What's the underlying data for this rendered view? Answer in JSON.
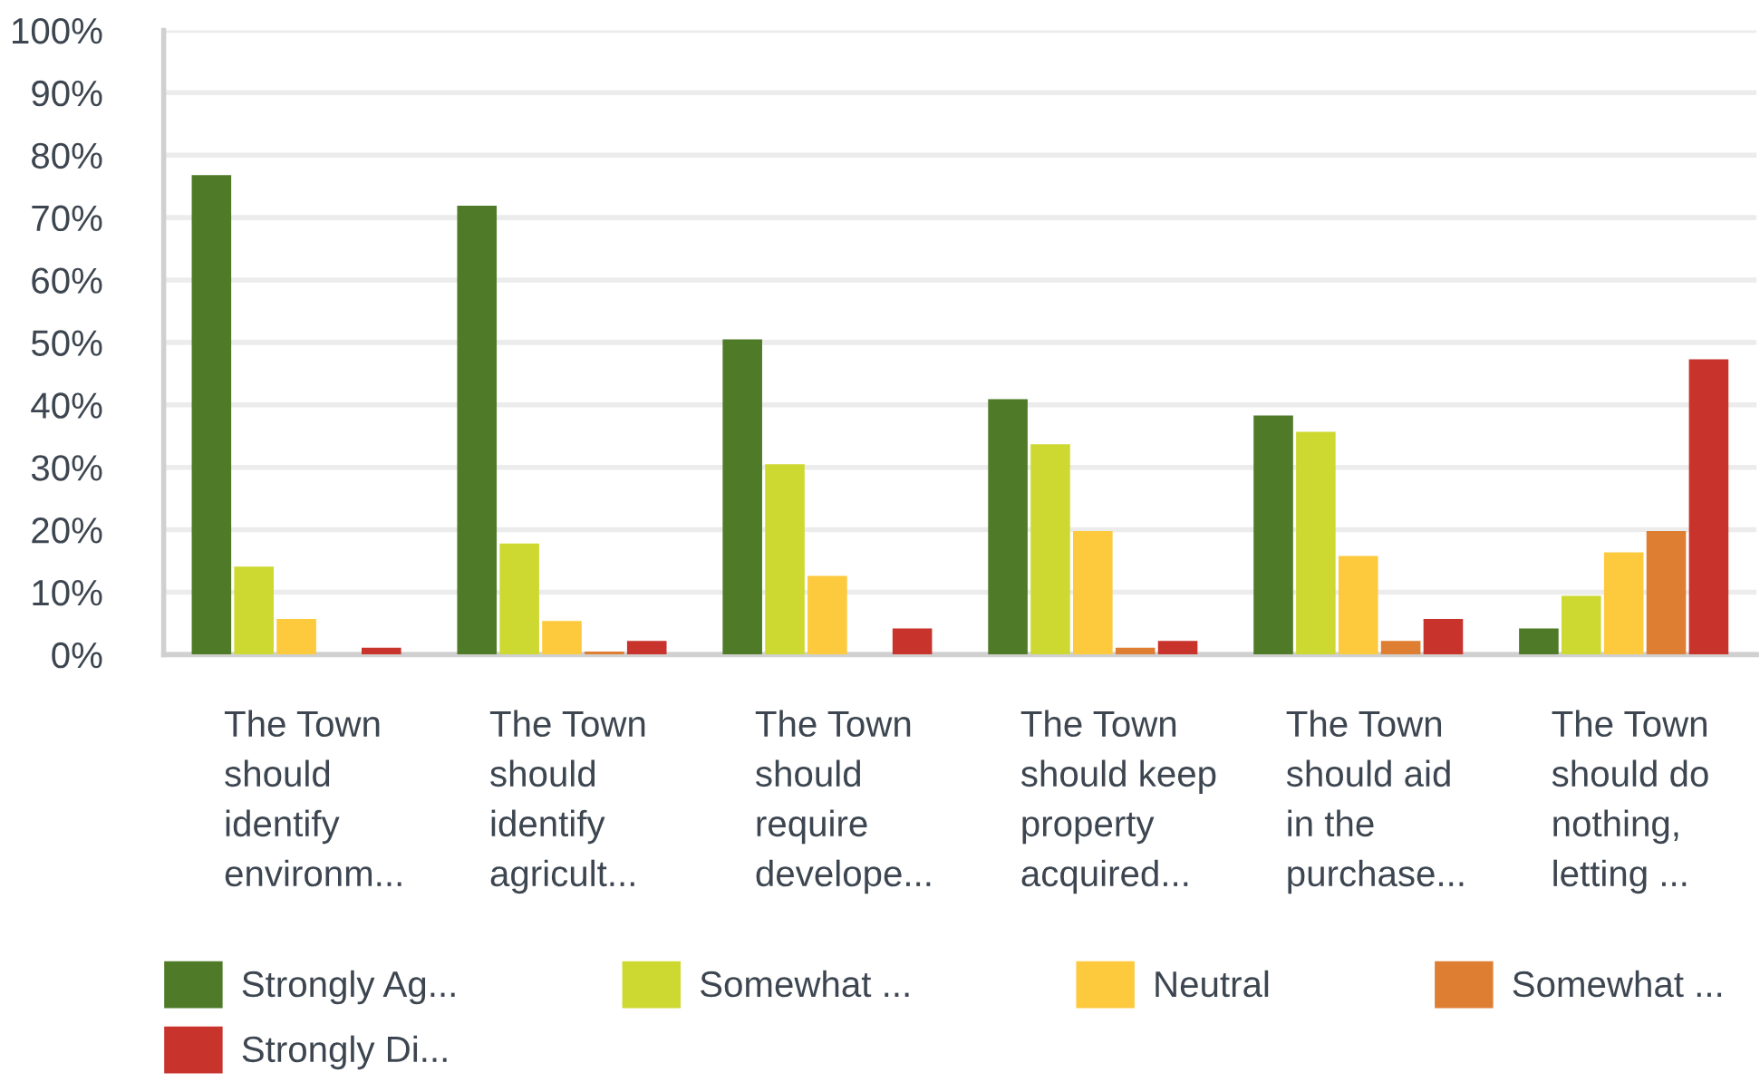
{
  "chart_data": {
    "type": "bar",
    "categories": [
      "The Town\nshould\nidentify\nenvironm...",
      "The Town\nshould\nidentify\nagricult...",
      "The Town\nshould\nrequire\ndevelope...",
      "The Town\nshould keep\nproperty\nacquired...",
      "The Town\nshould aid\nin the\npurchase...",
      "The Town\nshould do\nnothing,\nletting ..."
    ],
    "series": [
      {
        "name": "Strongly Ag...",
        "color": "#4f7a28",
        "values": [
          76.8,
          71.9,
          50.5,
          40.9,
          38.3,
          4.2
        ]
      },
      {
        "name": "Somewhat ...",
        "color": "#cdd931",
        "values": [
          14.1,
          17.8,
          30.5,
          33.7,
          35.7,
          9.4
        ]
      },
      {
        "name": "Neutral",
        "color": "#fdc93d",
        "values": [
          5.7,
          5.4,
          12.6,
          19.8,
          15.8,
          16.4
        ]
      },
      {
        "name": "Somewhat ...",
        "color": "#de7e33",
        "values": [
          0,
          0.5,
          0,
          1.1,
          2.2,
          19.8
        ]
      },
      {
        "name": "Strongly Di...",
        "color": "#c8332c",
        "values": [
          1.1,
          2.2,
          4.2,
          2.2,
          5.7,
          47.3
        ]
      }
    ],
    "ylim": [
      0,
      100
    ],
    "yticks": [
      {
        "value": 0,
        "label": "0%"
      },
      {
        "value": 10,
        "label": "10%"
      },
      {
        "value": 20,
        "label": "20%"
      },
      {
        "value": 30,
        "label": "30%"
      },
      {
        "value": 40,
        "label": "40%"
      },
      {
        "value": 50,
        "label": "50%"
      },
      {
        "value": 60,
        "label": "60%"
      },
      {
        "value": 70,
        "label": "70%"
      },
      {
        "value": 80,
        "label": "80%"
      },
      {
        "value": 90,
        "label": "90%"
      },
      {
        "value": 100,
        "label": "100%"
      }
    ],
    "grid": "y",
    "legend": "bottom"
  }
}
